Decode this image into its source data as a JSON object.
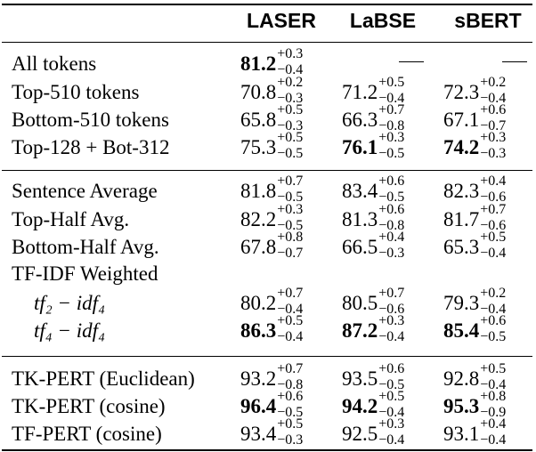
{
  "headers": [
    "LASER",
    "LaBSE",
    "sBERT"
  ],
  "rows": [
    {
      "label": "All tokens",
      "cells": [
        {
          "v": "81.2",
          "up": "+0.3",
          "dn": "−0.4",
          "bold": true
        },
        {
          "dash": "—"
        },
        {
          "dash": "—"
        }
      ]
    },
    {
      "label": "Top-510 tokens",
      "cells": [
        {
          "v": "70.8",
          "up": "+0.2",
          "dn": "−0.3",
          "bold": false
        },
        {
          "v": "71.2",
          "up": "+0.5",
          "dn": "−0.4",
          "bold": false
        },
        {
          "v": "72.3",
          "up": "+0.2",
          "dn": "−0.4",
          "bold": false
        }
      ]
    },
    {
      "label": "Bottom-510 tokens",
      "cells": [
        {
          "v": "65.8",
          "up": "+0.5",
          "dn": "−0.3",
          "bold": false
        },
        {
          "v": "66.3",
          "up": "+0.7",
          "dn": "−0.8",
          "bold": false
        },
        {
          "v": "67.1",
          "up": "+0.6",
          "dn": "−0.7",
          "bold": false
        }
      ]
    },
    {
      "label": "Top-128 + Bot-312",
      "cells": [
        {
          "v": "75.3",
          "up": "+0.5",
          "dn": "−0.5",
          "bold": false
        },
        {
          "v": "76.1",
          "up": "+0.3",
          "dn": "−0.5",
          "bold": true
        },
        {
          "v": "74.2",
          "up": "+0.3",
          "dn": "−0.3",
          "bold": true
        }
      ]
    },
    {
      "label": "Sentence Average",
      "cells": [
        {
          "v": "81.8",
          "up": "+0.7",
          "dn": "−0.5",
          "bold": false
        },
        {
          "v": "83.4",
          "up": "+0.6",
          "dn": "−0.5",
          "bold": false
        },
        {
          "v": "82.3",
          "up": "+0.4",
          "dn": "−0.6",
          "bold": false
        }
      ]
    },
    {
      "label": "Top-Half Avg.",
      "cells": [
        {
          "v": "82.2",
          "up": "+0.3",
          "dn": "−0.5",
          "bold": false
        },
        {
          "v": "81.3",
          "up": "+0.6",
          "dn": "−0.8",
          "bold": false
        },
        {
          "v": "81.7",
          "up": "+0.7",
          "dn": "−0.6",
          "bold": false
        }
      ]
    },
    {
      "label": "Bottom-Half Avg.",
      "cells": [
        {
          "v": "67.8",
          "up": "+0.8",
          "dn": "−0.7",
          "bold": false
        },
        {
          "v": "66.5",
          "up": "+0.4",
          "dn": "−0.3",
          "bold": false
        },
        {
          "v": "65.3",
          "up": "+0.5",
          "dn": "−0.4",
          "bold": false
        }
      ]
    },
    {
      "label": "TF-IDF Weighted",
      "cells": []
    },
    {
      "label": "tf₂ − idf₄",
      "indent": true,
      "cells": [
        {
          "v": "80.2",
          "up": "+0.7",
          "dn": "−0.4",
          "bold": false
        },
        {
          "v": "80.5",
          "up": "+0.7",
          "dn": "−0.6",
          "bold": false
        },
        {
          "v": "79.3",
          "up": "+0.2",
          "dn": "−0.4",
          "bold": false
        }
      ]
    },
    {
      "label": "tf₄ − idf₄",
      "indent": true,
      "cells": [
        {
          "v": "86.3",
          "up": "+0.5",
          "dn": "−0.4",
          "bold": true
        },
        {
          "v": "87.2",
          "up": "+0.3",
          "dn": "−0.4",
          "bold": true
        },
        {
          "v": "85.4",
          "up": "+0.6",
          "dn": "−0.5",
          "bold": true
        }
      ]
    },
    {
      "label": "TK-PERT (Euclidean)",
      "cells": [
        {
          "v": "93.2",
          "up": "+0.7",
          "dn": "−0.8",
          "bold": false
        },
        {
          "v": "93.5",
          "up": "+0.6",
          "dn": "−0.5",
          "bold": false
        },
        {
          "v": "92.8",
          "up": "+0.5",
          "dn": "−0.4",
          "bold": false
        }
      ]
    },
    {
      "label": "TK-PERT (cosine)",
      "cells": [
        {
          "v": "96.4",
          "up": "+0.6",
          "dn": "−0.5",
          "bold": true
        },
        {
          "v": "94.2",
          "up": "+0.5",
          "dn": "−0.4",
          "bold": true
        },
        {
          "v": "95.3",
          "up": "+0.8",
          "dn": "−0.9",
          "bold": true
        }
      ]
    },
    {
      "label": "TF-PERT (cosine)",
      "cells": [
        {
          "v": "93.4",
          "up": "+0.5",
          "dn": "−0.3",
          "bold": false
        },
        {
          "v": "92.5",
          "up": "+0.3",
          "dn": "−0.4",
          "bold": false
        },
        {
          "v": "93.1",
          "up": "+0.4",
          "dn": "−0.4",
          "bold": false
        }
      ]
    }
  ]
}
